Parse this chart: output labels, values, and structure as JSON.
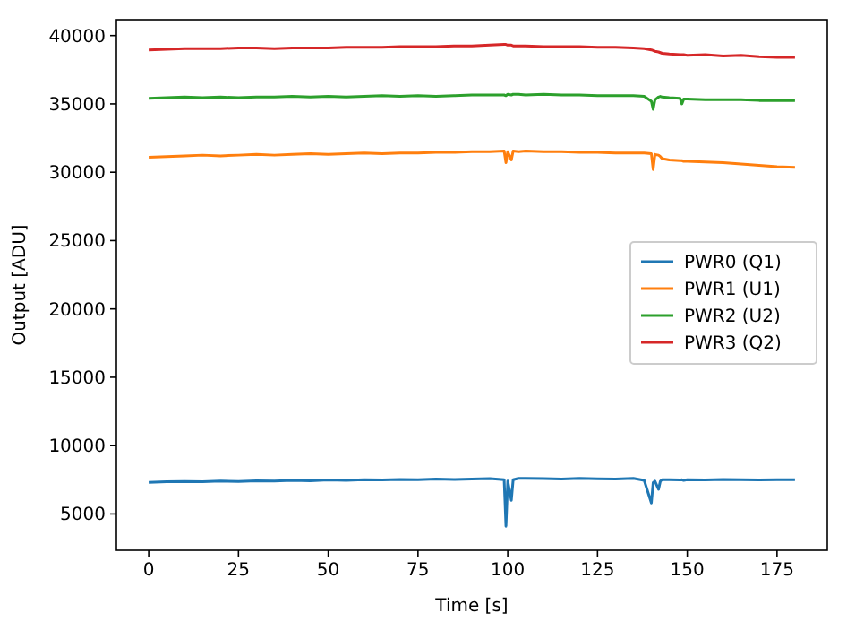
{
  "chart_data": {
    "type": "line",
    "xlabel": "Time [s]",
    "ylabel": "Output [ADU]",
    "x": [
      0,
      5,
      10,
      15,
      20,
      25,
      30,
      35,
      40,
      45,
      50,
      55,
      60,
      65,
      70,
      75,
      80,
      85,
      90,
      95,
      99,
      99.5,
      100,
      101,
      101.5,
      103,
      105,
      110,
      115,
      120,
      125,
      130,
      135,
      138,
      140,
      140.5,
      141,
      142,
      142.5,
      143,
      145,
      148,
      148.5,
      149,
      150,
      155,
      160,
      165,
      170,
      175,
      180
    ],
    "xlim": [
      -9,
      189
    ],
    "xticks": [
      0,
      25,
      50,
      75,
      100,
      125,
      150,
      175
    ],
    "ylim": [
      2340,
      41160
    ],
    "yticks": [
      5000,
      10000,
      15000,
      20000,
      25000,
      30000,
      35000,
      40000
    ],
    "legend": "right",
    "grid": false,
    "series": [
      {
        "name": "PWR0 (Q1)",
        "color": "#1f77b4",
        "values": [
          7300,
          7350,
          7380,
          7350,
          7400,
          7380,
          7420,
          7400,
          7450,
          7430,
          7480,
          7450,
          7500,
          7480,
          7520,
          7500,
          7550,
          7520,
          7550,
          7580,
          7500,
          4100,
          7400,
          6000,
          7500,
          7600,
          7600,
          7580,
          7550,
          7600,
          7570,
          7550,
          7600,
          7450,
          5800,
          7300,
          7400,
          6800,
          7400,
          7500,
          7500,
          7480,
          7500,
          7450,
          7500,
          7480,
          7520,
          7500,
          7480,
          7500,
          7500
        ]
      },
      {
        "name": "PWR1 (U1)",
        "color": "#ff7f0e",
        "values": [
          31100,
          31150,
          31200,
          31250,
          31200,
          31250,
          31300,
          31250,
          31300,
          31350,
          31300,
          31350,
          31400,
          31350,
          31400,
          31400,
          31450,
          31450,
          31500,
          31500,
          31550,
          30700,
          31500,
          30900,
          31550,
          31500,
          31550,
          31500,
          31500,
          31450,
          31450,
          31400,
          31400,
          31400,
          31350,
          30200,
          31300,
          31250,
          31150,
          31000,
          30900,
          30850,
          30850,
          30800,
          30800,
          30750,
          30700,
          30600,
          30500,
          30400,
          30350
        ]
      },
      {
        "name": "PWR2 (U2)",
        "color": "#2ca02c",
        "values": [
          35400,
          35450,
          35500,
          35450,
          35500,
          35450,
          35500,
          35500,
          35550,
          35500,
          35550,
          35500,
          35550,
          35600,
          35550,
          35600,
          35550,
          35600,
          35650,
          35650,
          35650,
          35600,
          35700,
          35650,
          35700,
          35700,
          35650,
          35700,
          35650,
          35650,
          35600,
          35600,
          35600,
          35550,
          35200,
          34600,
          35300,
          35500,
          35550,
          35500,
          35450,
          35400,
          35000,
          35350,
          35350,
          35300,
          35300,
          35300,
          35250,
          35250,
          35250
        ]
      },
      {
        "name": "PWR3 (Q2)",
        "color": "#d62728",
        "values": [
          38950,
          39000,
          39050,
          39050,
          39050,
          39100,
          39100,
          39050,
          39100,
          39100,
          39100,
          39150,
          39150,
          39150,
          39200,
          39200,
          39200,
          39250,
          39250,
          39300,
          39350,
          39350,
          39300,
          39300,
          39250,
          39250,
          39250,
          39200,
          39200,
          39200,
          39150,
          39150,
          39100,
          39050,
          38950,
          38900,
          38850,
          38800,
          38750,
          38700,
          38650,
          38600,
          38600,
          38600,
          38550,
          38600,
          38500,
          38550,
          38450,
          38400,
          38400
        ]
      }
    ]
  }
}
